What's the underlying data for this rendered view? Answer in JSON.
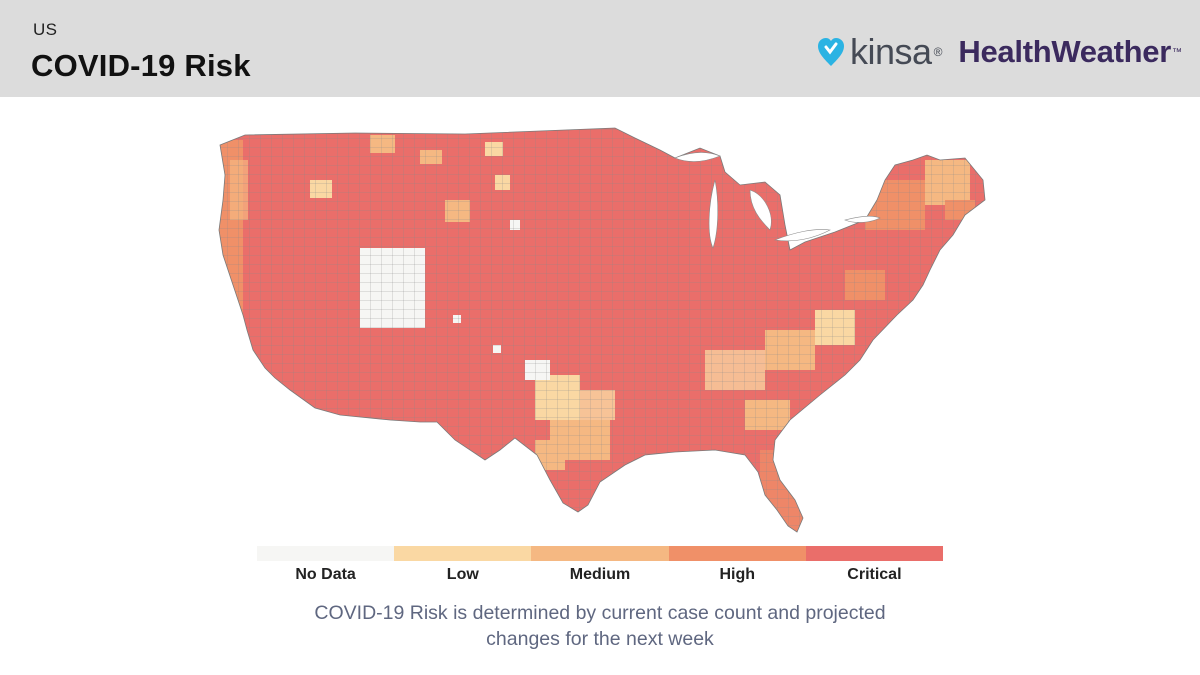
{
  "header": {
    "region": "US",
    "title": "COVID-19 Risk",
    "brand": {
      "kinsa": "kinsa",
      "kinsa_mark": "®",
      "healthweather": "HealthWeather",
      "healthweather_mark": "™",
      "kinsa_color": "#2bb3e3",
      "healthweather_color": "#3b2a5e"
    }
  },
  "map": {
    "region": "Contiguous United States (county level)",
    "colors": {
      "no_data": "#f6f6f4",
      "low": "#fad8a3",
      "medium": "#f5b882",
      "high": "#f09068",
      "critical": "#ea6e6a",
      "border": "#8a8a8a"
    }
  },
  "legend": {
    "items": [
      {
        "label": "No Data",
        "color": "#f6f6f4"
      },
      {
        "label": "Low",
        "color": "#fad8a3"
      },
      {
        "label": "Medium",
        "color": "#f5b882"
      },
      {
        "label": "High",
        "color": "#f09068"
      },
      {
        "label": "Critical",
        "color": "#ea6e6a"
      }
    ]
  },
  "caption": {
    "line1": "COVID-19 Risk is determined by current case count and projected",
    "line2": "changes for the next week"
  }
}
